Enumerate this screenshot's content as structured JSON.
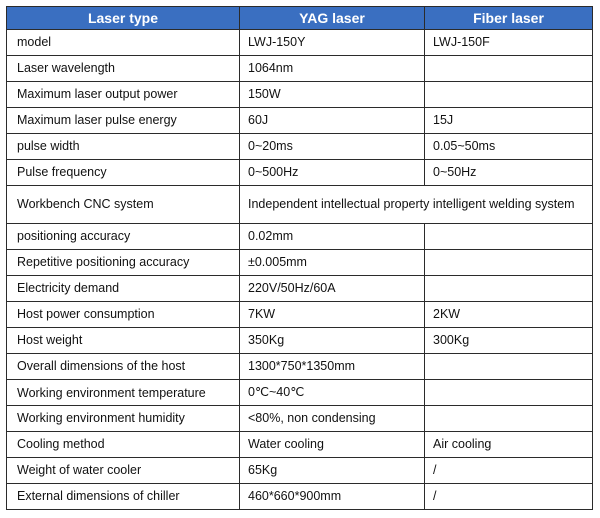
{
  "header": {
    "col1": "Laser type",
    "col2": "YAG laser",
    "col3": "Fiber laser"
  },
  "rows": [
    {
      "label": "model",
      "yag": "LWJ-150Y",
      "fiber": "LWJ-150F"
    },
    {
      "label": "Laser wavelength",
      "yag": "1064nm",
      "fiber": ""
    },
    {
      "label": "Maximum laser output power",
      "yag": "150W",
      "fiber": ""
    },
    {
      "label": "Maximum laser pulse energy",
      "yag": "60J",
      "fiber": "15J"
    },
    {
      "label": "pulse width",
      "yag": "0~20ms",
      "fiber": "0.05~50ms"
    },
    {
      "label": "Pulse frequency",
      "yag": "0~500Hz",
      "fiber": "0~50Hz"
    },
    {
      "label": "Workbench CNC system",
      "merged": "Independent intellectual property intelligent welding system"
    },
    {
      "label": "positioning accuracy",
      "yag": "0.02mm",
      "fiber": ""
    },
    {
      "label": "Repetitive positioning accuracy",
      "yag": "±0.005mm",
      "fiber": ""
    },
    {
      "label": "Electricity demand",
      "yag": "220V/50Hz/60A",
      "fiber": ""
    },
    {
      "label": "Host power consumption",
      "yag": "7KW",
      "fiber": "2KW"
    },
    {
      "label": "Host weight",
      "yag": "350Kg",
      "fiber": "300Kg"
    },
    {
      "label": "Overall dimensions of the host",
      "yag": "1300*750*1350mm",
      "fiber": ""
    },
    {
      "label": "Working environment temperature",
      "yag": "0℃~40℃",
      "fiber": ""
    },
    {
      "label": "Working environment humidity",
      "yag": "<80%, non condensing",
      "fiber": ""
    },
    {
      "label": "Cooling method",
      "yag": "Water cooling",
      "fiber": "Air cooling"
    },
    {
      "label": "Weight of water cooler",
      "yag": "65Kg",
      "fiber": "/"
    },
    {
      "label": "External dimensions of chiller",
      "yag": "460*660*900mm",
      "fiber": "/"
    }
  ]
}
